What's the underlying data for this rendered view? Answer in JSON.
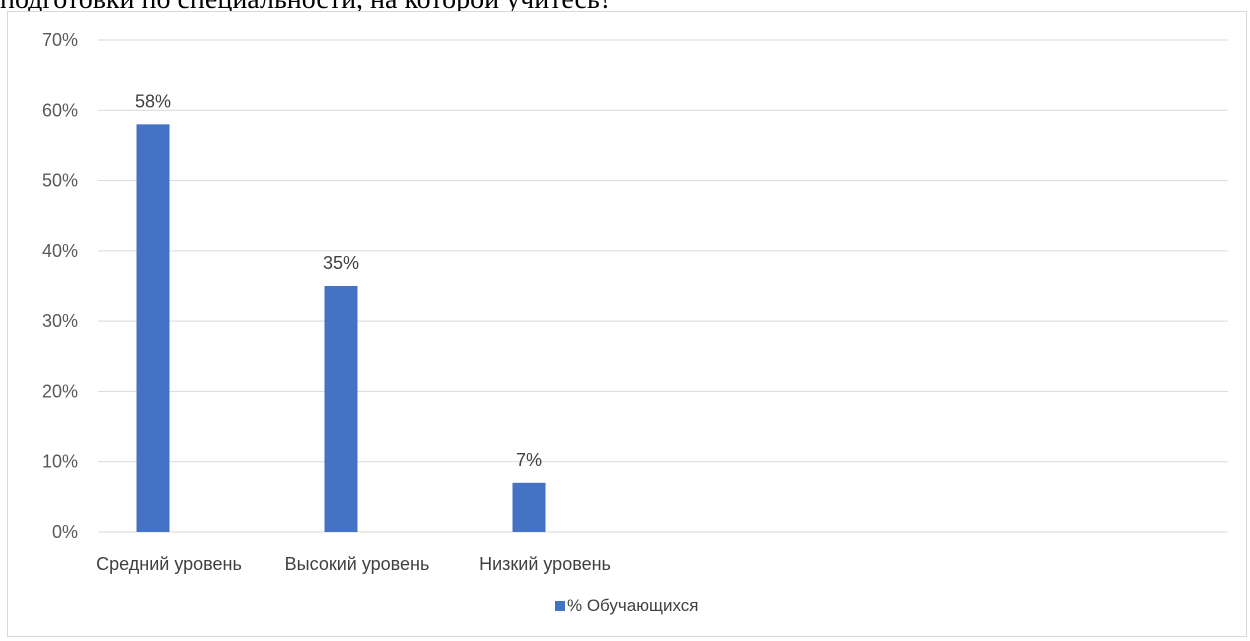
{
  "document": {
    "text_above": "подготовки по специальности, на которой учитесь?"
  },
  "chart_data": {
    "type": "bar",
    "categories": [
      "Средний уровень",
      "Высокий уровень",
      "Низкий уровень"
    ],
    "series": [
      {
        "name": "% Обучающихся",
        "values": [
          58,
          35,
          7
        ],
        "color": "#4472c4"
      }
    ],
    "data_labels": [
      "58%",
      "35%",
      "7%"
    ],
    "y_ticks": [
      "0%",
      "10%",
      "20%",
      "30%",
      "40%",
      "50%",
      "60%",
      "70%"
    ],
    "ylim": [
      0,
      70
    ],
    "y_tick_values": [
      0,
      10,
      20,
      30,
      40,
      50,
      60,
      70
    ],
    "grid": true,
    "legend_position": "bottom",
    "gridline_color": "#d9d9d9"
  }
}
